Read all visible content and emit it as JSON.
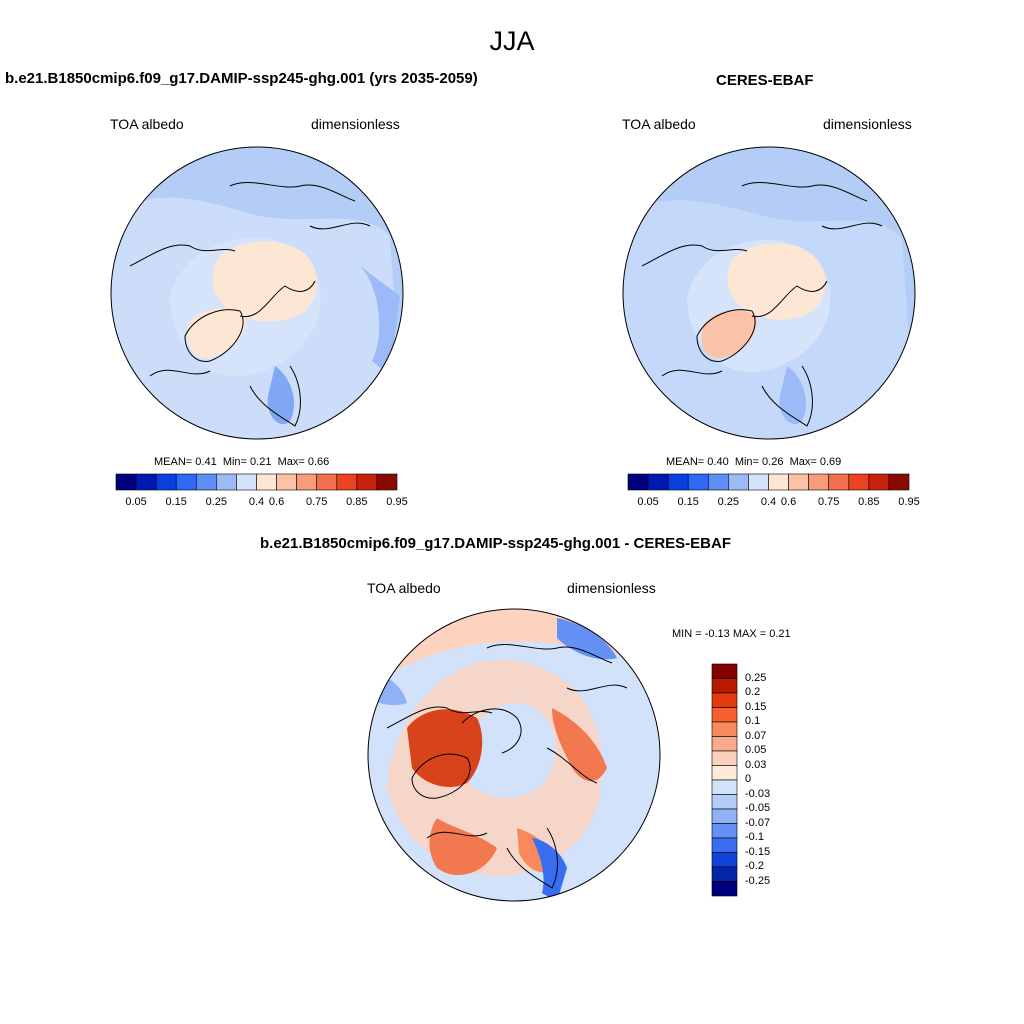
{
  "figure": {
    "title": "JJA"
  },
  "panels": [
    {
      "title": "b.e21.B1850cmip6.f09_g17.DAMIP-ssp245-ghg.001 (yrs 2035-2059)",
      "variable": "TOA albedo",
      "units": "dimensionless",
      "stats": {
        "mean_label": "MEAN=",
        "mean": "0.41",
        "min_label": "Min=",
        "min": "0.21",
        "max_label": "Max=",
        "max": "0.66"
      }
    },
    {
      "title": "CERES-EBAF",
      "variable": "TOA albedo",
      "units": "dimensionless",
      "stats": {
        "mean_label": "MEAN=",
        "mean": "0.40",
        "min_label": "Min=",
        "min": "0.26",
        "max_label": "Max=",
        "max": "0.69"
      }
    },
    {
      "title": "b.e21.B1850cmip6.f09_g17.DAMIP-ssp245-ghg.001 - CERES-EBAF",
      "variable": "TOA albedo",
      "units": "dimensionless",
      "stats": {
        "min_label": "MIN =",
        "min": "-0.13",
        "max_label": "MAX =",
        "max": "0.21"
      }
    }
  ],
  "colorbars": {
    "albedo": {
      "labels": [
        "0.05",
        "0.15",
        "0.25",
        "0.4",
        "0.6",
        "0.75",
        "0.85",
        "0.95"
      ],
      "colors": [
        "#00007f",
        "#0018b4",
        "#0a3fe0",
        "#2f6af5",
        "#5d8ff6",
        "#9cbaf7",
        "#d3e3fb",
        "#ffe6d3",
        "#fbc2a8",
        "#f79b7a",
        "#f2704e",
        "#e9431f",
        "#c8200c",
        "#8a0b03"
      ]
    },
    "difference": {
      "labels": [
        "0.25",
        "0.2",
        "0.15",
        "0.1",
        "0.07",
        "0.05",
        "0.03",
        "0",
        "-0.03",
        "-0.05",
        "-0.07",
        "-0.1",
        "-0.15",
        "-0.2",
        "-0.25"
      ],
      "colors": [
        "#850000",
        "#b81a00",
        "#e23b0f",
        "#f5622e",
        "#f8895c",
        "#f9ac8c",
        "#fbd0bc",
        "#fdeadd",
        "#d2e2fb",
        "#b4ccf8",
        "#8fb1f6",
        "#6590f5",
        "#3a6ef2",
        "#0f43dc",
        "#0524a8",
        "#00007f"
      ]
    }
  },
  "map_colors": {
    "ocean_blue": "#b3cdf6",
    "ice_pale": "#d6e4fb",
    "bright_land": "#fde6d4",
    "deep_blue": "#7fa7f3",
    "diff_red": "#f2794f",
    "diff_dark_red": "#d8431c",
    "diff_pink": "#fbd3bf"
  }
}
